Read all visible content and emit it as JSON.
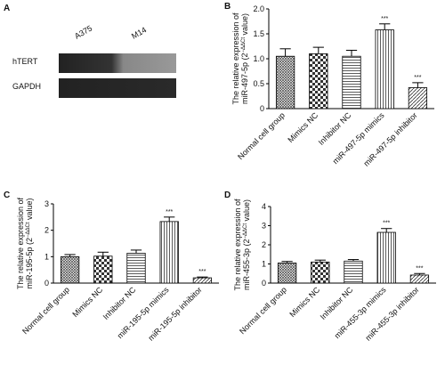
{
  "blot": {
    "panel": "A",
    "lanes": [
      "A375",
      "M14"
    ],
    "rows": [
      "hTERT",
      "GAPDH"
    ]
  },
  "chart_data": [
    {
      "type": "bar",
      "panel": "B",
      "ylabel": [
        "The relative expression of",
        "miR-497-5p (2"
      ],
      "ylabel_sup": "−ΔΔCt",
      "ylabel_end": " value)",
      "categories": [
        "Normal cell group",
        "Mimics NC",
        "Inhibitor NC",
        "miR-497-5p mimics",
        "miR-497-5p inhibitor"
      ],
      "values": [
        1.05,
        1.1,
        1.05,
        1.58,
        0.42
      ],
      "errors": [
        0.15,
        0.13,
        0.12,
        0.12,
        0.1
      ],
      "annotations": [
        null,
        null,
        null,
        "***",
        "***"
      ],
      "ylim": [
        0,
        2
      ],
      "yticks": [
        0,
        0.5,
        {
          "value": 1,
          "label": "1.0"
        },
        1.5,
        {
          "value": 2,
          "label": "2.0"
        }
      ]
    },
    {
      "type": "bar",
      "panel": "C",
      "ylabel": [
        "The relative expression of",
        "miR-195-5p (2"
      ],
      "ylabel_sup": "−ΔΔCt",
      "ylabel_end": " value)",
      "categories": [
        "Normal cell group",
        "Mimics NC",
        "Inhibitor NC",
        "miR-195-5p mimics",
        "miR-195-5p inhibitor"
      ],
      "values": [
        1.0,
        1.02,
        1.13,
        2.33,
        0.2
      ],
      "errors": [
        0.08,
        0.15,
        0.12,
        0.17,
        0.03
      ],
      "annotations": [
        null,
        null,
        null,
        "***",
        "***"
      ],
      "ylim": [
        0,
        3
      ],
      "yticks": [
        0,
        1,
        2,
        3
      ]
    },
    {
      "type": "bar",
      "panel": "D",
      "ylabel": [
        "The relative expression of",
        "miR-455-3p (2"
      ],
      "ylabel_sup": "−ΔΔCt",
      "ylabel_end": " value)",
      "categories": [
        "Normal cell group",
        "Mimics NC",
        "Inhibitor NC",
        "miR-455-3p mimics",
        "miR-455-3p inhibitor"
      ],
      "values": [
        1.05,
        1.1,
        1.15,
        2.65,
        0.42
      ],
      "errors": [
        0.08,
        0.1,
        0.08,
        0.2,
        0.08
      ],
      "annotations": [
        null,
        null,
        null,
        "***",
        "***"
      ],
      "ylim": [
        0,
        4
      ],
      "yticks": [
        0,
        1,
        2,
        3,
        4
      ]
    }
  ]
}
